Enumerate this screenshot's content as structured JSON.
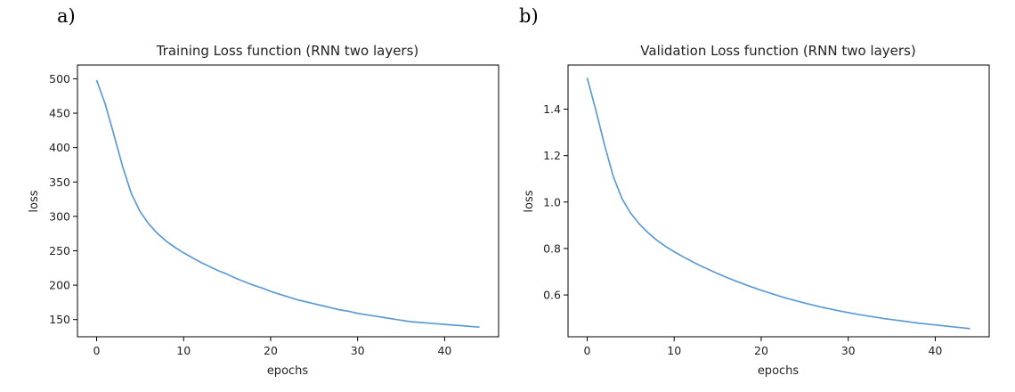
{
  "chart_data": [
    {
      "type": "line",
      "panel_label": "a)",
      "title": "Training Loss function (RNN two layers)",
      "xlabel": "epochs",
      "ylabel": "loss",
      "xlim": [
        -2.2,
        46.2
      ],
      "ylim": [
        125,
        520
      ],
      "xticks": [
        0,
        10,
        20,
        30,
        40
      ],
      "yticks": [
        150,
        200,
        250,
        300,
        350,
        400,
        450,
        500
      ],
      "grid": false,
      "series": [
        {
          "color": "#5b9bd5",
          "x": [
            0,
            1,
            2,
            3,
            4,
            5,
            6,
            7,
            8,
            9,
            10,
            11,
            12,
            13,
            14,
            15,
            16,
            17,
            18,
            19,
            20,
            21,
            22,
            23,
            24,
            25,
            26,
            27,
            28,
            29,
            30,
            31,
            32,
            33,
            34,
            35,
            36,
            37,
            38,
            39,
            40,
            41,
            42,
            43,
            44
          ],
          "y": [
            498,
            463,
            418,
            372,
            333,
            307,
            289,
            275,
            264,
            255,
            247,
            240,
            233,
            227,
            221,
            216,
            210,
            205,
            200,
            196,
            191,
            187,
            183,
            179,
            176,
            173,
            170,
            167,
            164,
            162,
            159,
            157,
            155,
            153,
            151,
            149,
            147,
            146,
            145,
            144,
            143,
            142,
            141,
            140,
            139
          ]
        }
      ]
    },
    {
      "type": "line",
      "panel_label": "b)",
      "title": "Validation Loss function (RNN two layers)",
      "xlabel": "epochs",
      "ylabel": "loss",
      "xlim": [
        -2.2,
        46.2
      ],
      "ylim": [
        0.42,
        1.59
      ],
      "xticks": [
        0,
        10,
        20,
        30,
        40
      ],
      "yticks": [
        0.6,
        0.8,
        1.0,
        1.2,
        1.4
      ],
      "grid": false,
      "series": [
        {
          "color": "#5b9bd5",
          "x": [
            0,
            1,
            2,
            3,
            4,
            5,
            6,
            7,
            8,
            9,
            10,
            11,
            12,
            13,
            14,
            15,
            16,
            17,
            18,
            19,
            20,
            21,
            22,
            23,
            24,
            25,
            26,
            27,
            28,
            29,
            30,
            31,
            32,
            33,
            34,
            35,
            36,
            37,
            38,
            39,
            40,
            41,
            42,
            43,
            44
          ],
          "y": [
            1.535,
            1.395,
            1.245,
            1.11,
            1.015,
            0.952,
            0.905,
            0.868,
            0.836,
            0.809,
            0.786,
            0.765,
            0.745,
            0.726,
            0.709,
            0.692,
            0.676,
            0.661,
            0.647,
            0.633,
            0.62,
            0.608,
            0.596,
            0.585,
            0.575,
            0.565,
            0.556,
            0.547,
            0.539,
            0.531,
            0.524,
            0.517,
            0.511,
            0.505,
            0.499,
            0.494,
            0.489,
            0.484,
            0.479,
            0.475,
            0.471,
            0.467,
            0.463,
            0.459,
            0.455
          ]
        }
      ]
    }
  ]
}
